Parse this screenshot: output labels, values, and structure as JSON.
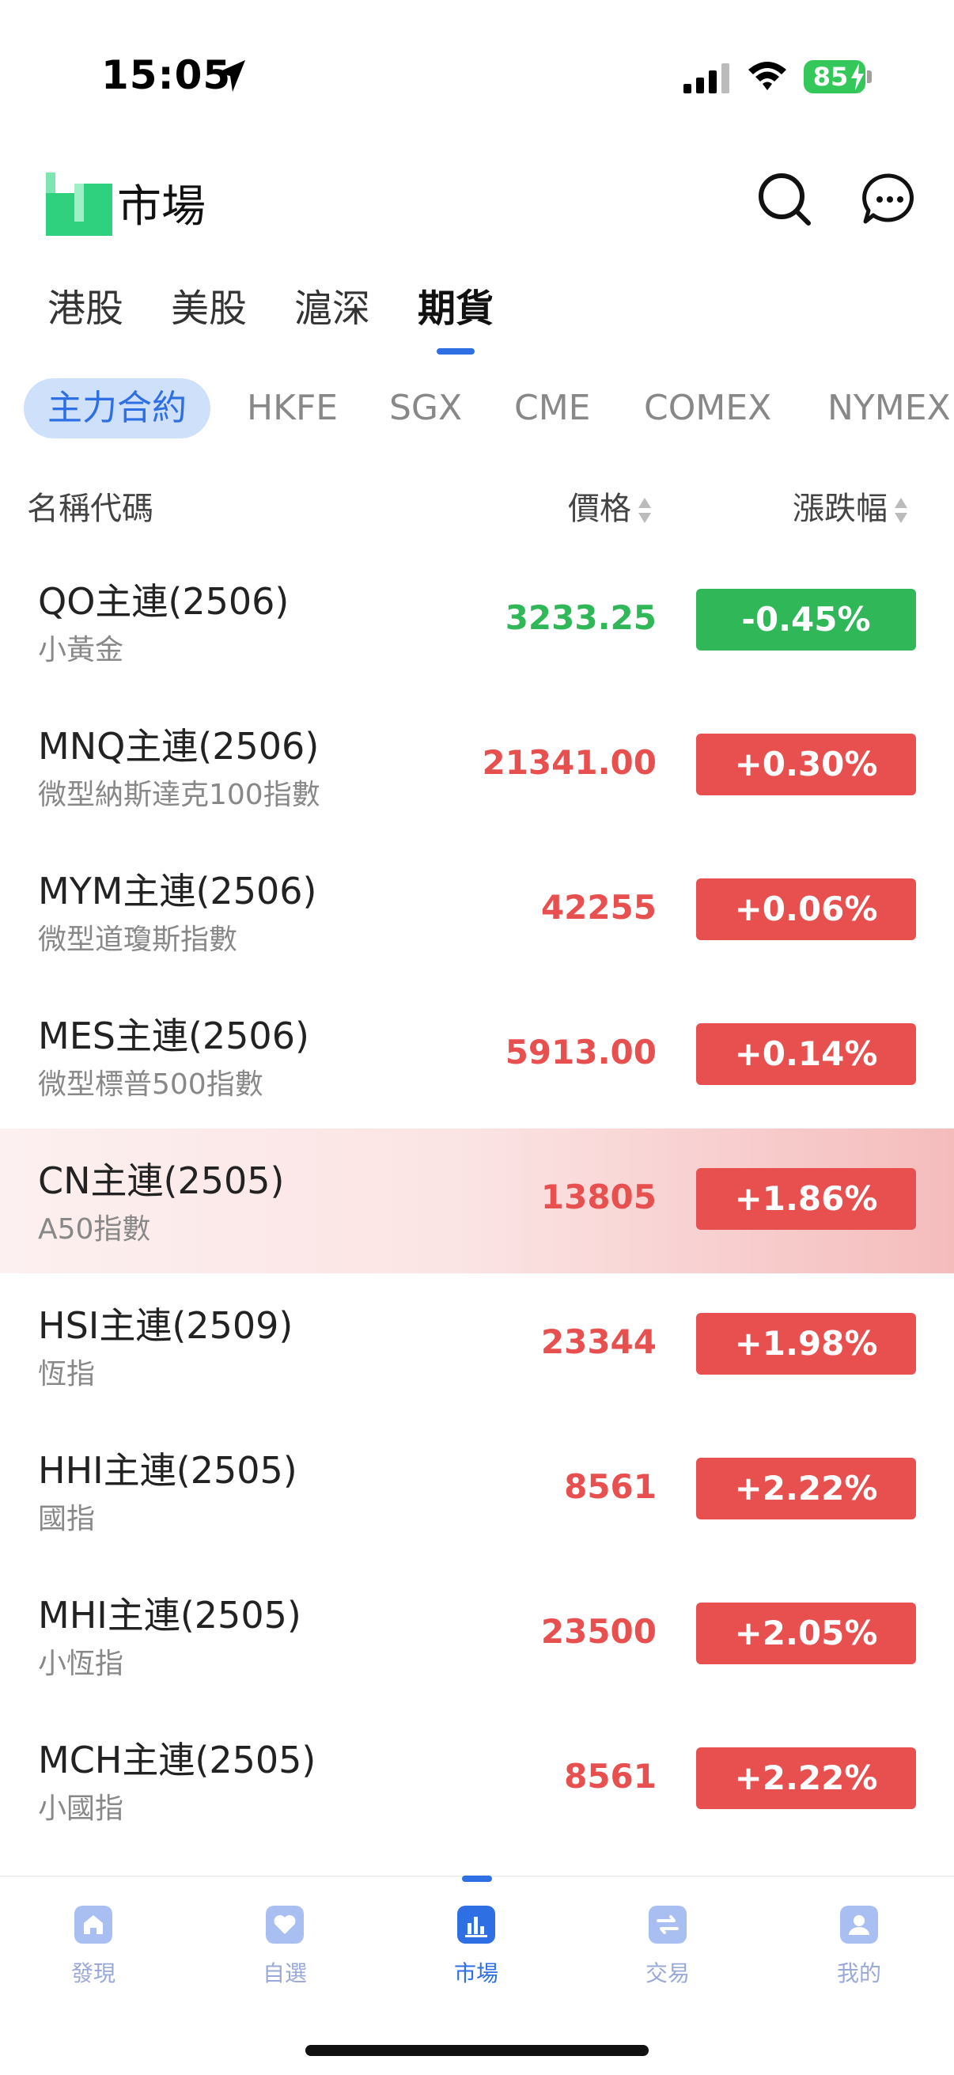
{
  "status_bar": {
    "time": "15:05",
    "battery": "85"
  },
  "header": {
    "title": "市場"
  },
  "market_tabs": [
    {
      "label": "港股"
    },
    {
      "label": "美股"
    },
    {
      "label": "滬深"
    },
    {
      "label": "期貨",
      "active": true
    }
  ],
  "sub_tabs": [
    {
      "label": "主力合約",
      "active": true
    },
    {
      "label": "HKFE"
    },
    {
      "label": "SGX"
    },
    {
      "label": "CME"
    },
    {
      "label": "COMEX"
    },
    {
      "label": "NYMEX"
    }
  ],
  "columns": {
    "name": "名稱代碼",
    "price": "價格",
    "change": "漲跌幅"
  },
  "rows": [
    {
      "name": "QO主連(2506)",
      "sub": "小黃金",
      "price": "3233.25",
      "change": "-0.45%",
      "direction": "down"
    },
    {
      "name": "MNQ主連(2506)",
      "sub": "微型納斯達克100指數",
      "price": "21341.00",
      "change": "+0.30%",
      "direction": "up"
    },
    {
      "name": "MYM主連(2506)",
      "sub": "微型道瓊斯指數",
      "price": "42255",
      "change": "+0.06%",
      "direction": "up"
    },
    {
      "name": "MES主連(2506)",
      "sub": "微型標普500指數",
      "price": "5913.00",
      "change": "+0.14%",
      "direction": "up"
    },
    {
      "name": "CN主連(2505)",
      "sub": "A50指數",
      "price": "13805",
      "change": "+1.86%",
      "direction": "up",
      "highlight": true
    },
    {
      "name": "HSI主連(2509)",
      "sub": "恆指",
      "price": "23344",
      "change": "+1.98%",
      "direction": "up"
    },
    {
      "name": "HHI主連(2505)",
      "sub": "國指",
      "price": "8561",
      "change": "+2.22%",
      "direction": "up"
    },
    {
      "name": "MHI主連(2505)",
      "sub": "小恆指",
      "price": "23500",
      "change": "+2.05%",
      "direction": "up"
    },
    {
      "name": "MCH主連(2505)",
      "sub": "小國指",
      "price": "8561",
      "change": "+2.22%",
      "direction": "up"
    }
  ],
  "colors": {
    "up": "#e8504f",
    "down": "#2fb758",
    "accent": "#2f6fe4"
  },
  "bottom_nav": [
    {
      "label": "發現",
      "icon": "home-icon"
    },
    {
      "label": "自選",
      "icon": "heart-icon"
    },
    {
      "label": "市場",
      "icon": "chart-icon",
      "active": true
    },
    {
      "label": "交易",
      "icon": "swap-icon"
    },
    {
      "label": "我的",
      "icon": "profile-icon"
    }
  ]
}
